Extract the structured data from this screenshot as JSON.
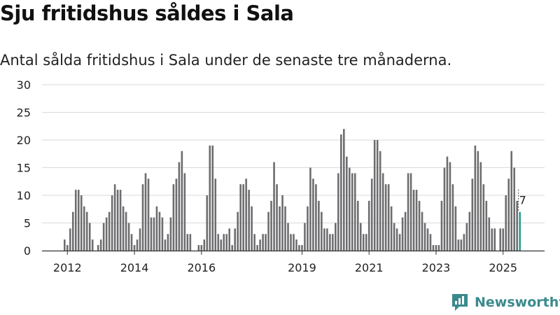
{
  "header": {
    "title": "Sju fritidshus såldes i Sala",
    "subtitle": "Antal sålda fritidshus i Sala under de senaste tre månaderna."
  },
  "brand": {
    "name": "Newsworthy",
    "icon": "newsworthy-logo-icon"
  },
  "colors": {
    "bar": "#6d6d70",
    "highlight": "#2a9d8f",
    "grid": "#d9d9d9",
    "axis": "#333333"
  },
  "chart_data": {
    "type": "bar",
    "title": "Sju fritidshus såldes i Sala",
    "subtitle": "Antal sålda fritidshus i Sala under de senaste tre månaderna.",
    "xlabel": "",
    "ylabel": "",
    "ylim": [
      0,
      30
    ],
    "yticks": [
      0,
      5,
      10,
      15,
      20,
      25,
      30
    ],
    "grid": true,
    "xticks": [
      {
        "label": "2012",
        "index": 1
      },
      {
        "label": "2014",
        "index": 25
      },
      {
        "label": "2016",
        "index": 49
      },
      {
        "label": "2019",
        "index": 85
      },
      {
        "label": "2021",
        "index": 109
      },
      {
        "label": "2023",
        "index": 133
      },
      {
        "label": "2025",
        "index": 157
      }
    ],
    "highlight_label": "7",
    "values": [
      2,
      1,
      4,
      7,
      11,
      11,
      10,
      8,
      7,
      5,
      2,
      0,
      1,
      2,
      5,
      6,
      7,
      10,
      12,
      11,
      11,
      8,
      7,
      5,
      3,
      1,
      2,
      4,
      12,
      14,
      13,
      6,
      6,
      8,
      7,
      6,
      2,
      3,
      6,
      12,
      13,
      16,
      18,
      14,
      3,
      3,
      0,
      0,
      1,
      1,
      2,
      10,
      19,
      19,
      13,
      3,
      2,
      3,
      3,
      4,
      1,
      4,
      7,
      12,
      12,
      13,
      11,
      8,
      3,
      1,
      2,
      3,
      3,
      7,
      9,
      16,
      12,
      8,
      10,
      8,
      5,
      3,
      3,
      2,
      1,
      1,
      5,
      8,
      15,
      13,
      12,
      9,
      7,
      4,
      4,
      3,
      3,
      5,
      14,
      21,
      22,
      17,
      15,
      14,
      14,
      9,
      5,
      3,
      3,
      9,
      13,
      20,
      20,
      18,
      14,
      12,
      12,
      8,
      5,
      4,
      3,
      6,
      7,
      14,
      14,
      11,
      11,
      9,
      7,
      5,
      4,
      3,
      1,
      1,
      1,
      9,
      15,
      17,
      16,
      12,
      8,
      2,
      2,
      3,
      5,
      7,
      13,
      19,
      18,
      16,
      12,
      9,
      6,
      4,
      4,
      0,
      4,
      4,
      10,
      13,
      18,
      15,
      9,
      7
    ]
  }
}
